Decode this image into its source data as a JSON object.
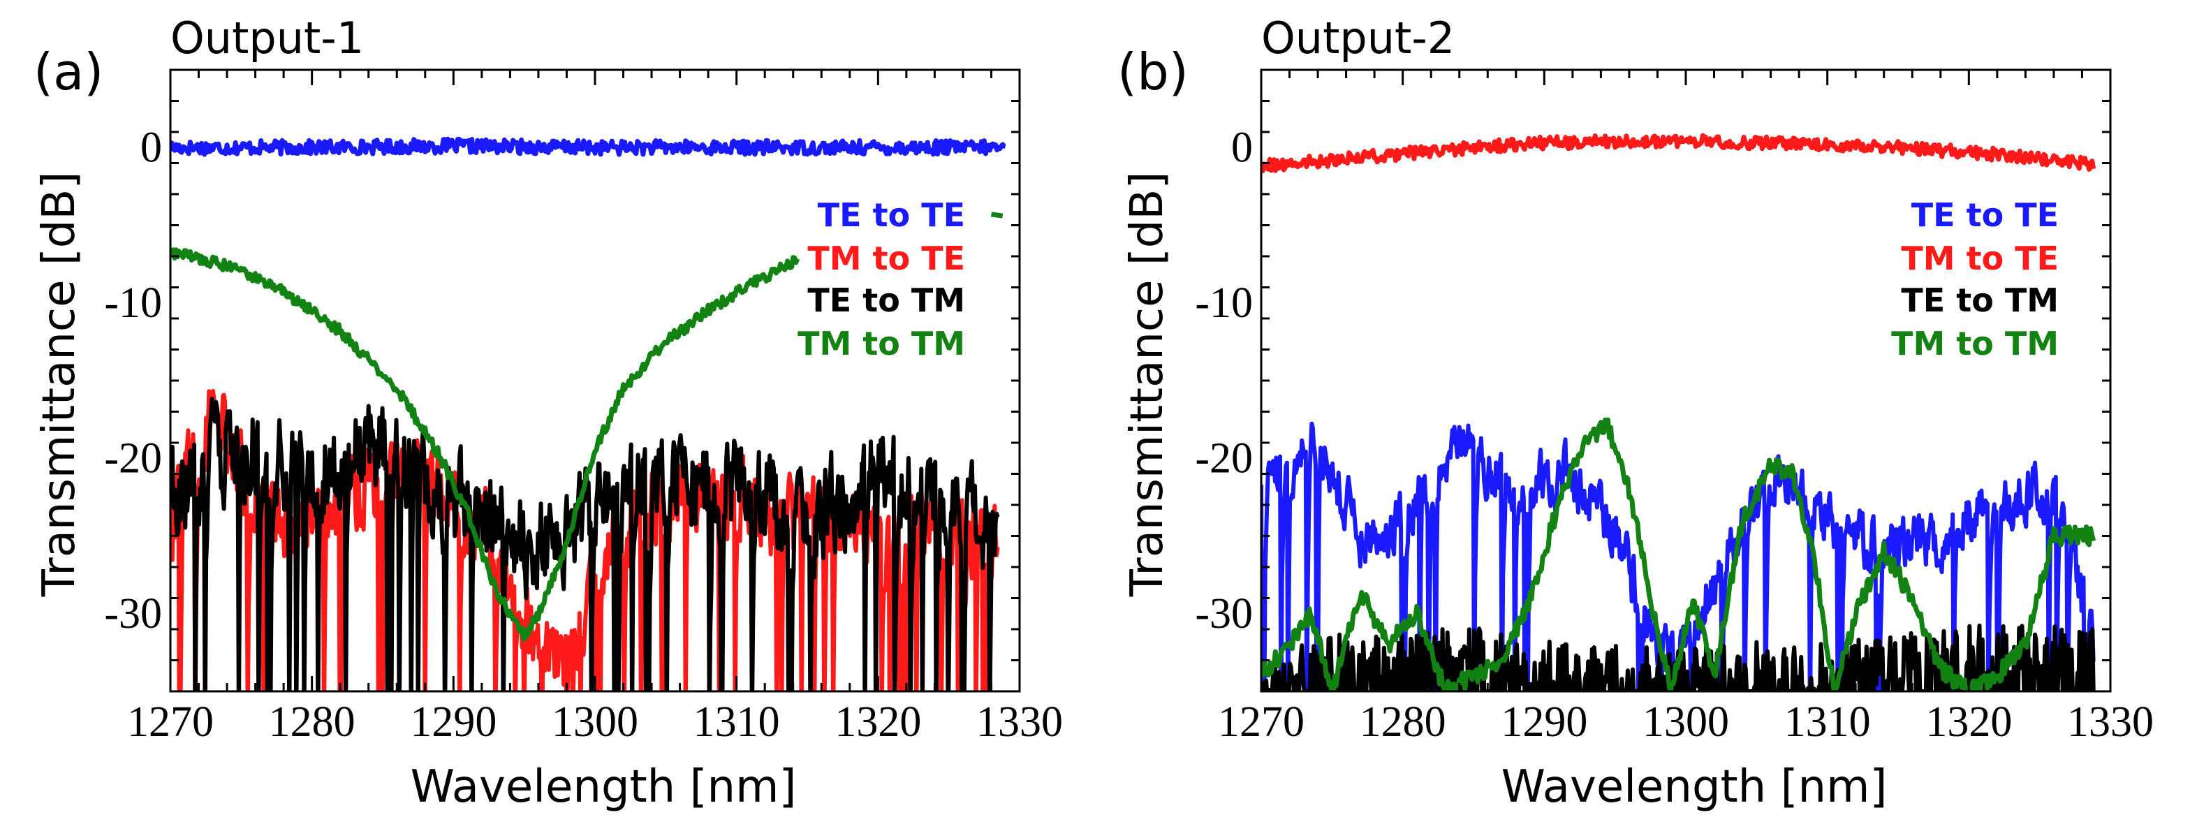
{
  "chart_data": [
    {
      "type": "line",
      "panel_label": "(a)",
      "title": "Output-1",
      "xlabel": "Wavelength [nm]",
      "ylabel": "Transmittance [dB]",
      "xlim": [
        1270,
        1330
      ],
      "ylim": [
        -35,
        5
      ],
      "xticks": [
        1270,
        1280,
        1290,
        1300,
        1310,
        1320,
        1330
      ],
      "yticks": [
        0,
        -10,
        -20,
        -30
      ],
      "grid": false,
      "legend_position": "right",
      "series": [
        {
          "name": "TE to TE",
          "color": "#1a1aff",
          "kind": "flat",
          "x": [
            1270,
            1280,
            1290,
            1300,
            1310,
            1320,
            1329
          ],
          "y": [
            0,
            0,
            0.1,
            0,
            0,
            0,
            0
          ],
          "noise": 0.45
        },
        {
          "name": "TM to TE",
          "color": "#ff1a1a",
          "kind": "noisy",
          "x": [
            1270,
            1273,
            1276,
            1280,
            1284,
            1288,
            1292,
            1294,
            1296,
            1298,
            1300,
            1304,
            1308,
            1312,
            1316,
            1320,
            1324,
            1328.5
          ],
          "y": [
            -24,
            -17,
            -23,
            -24,
            -22,
            -21,
            -24,
            -28,
            -32,
            -33,
            -27,
            -23,
            -22,
            -24,
            -24,
            -25,
            -24,
            -25
          ],
          "noise": 4,
          "floor": -35
        },
        {
          "name": "TE to TM",
          "color": "#000000",
          "kind": "noisy",
          "x": [
            1270,
            1275,
            1280,
            1285,
            1290,
            1295,
            1300,
            1305,
            1310,
            1315,
            1320,
            1325,
            1328.5
          ],
          "y": [
            -22,
            -19,
            -21,
            -19,
            -23,
            -26,
            -23,
            -21,
            -22,
            -24,
            -21,
            -23,
            -25
          ],
          "noise": 5,
          "floor": -35
        },
        {
          "name": "TM to TM",
          "color": "#128212",
          "kind": "smooth",
          "x": [
            1270,
            1274,
            1278,
            1282,
            1286,
            1289,
            1291,
            1293,
            1295,
            1296,
            1298,
            1300,
            1302,
            1305,
            1308,
            1311,
            1314.3
          ],
          "y": [
            -6.7,
            -7.6,
            -9.3,
            -11.8,
            -15.5,
            -19.8,
            -23.5,
            -28.5,
            -31.5,
            -30,
            -25.5,
            -19.5,
            -15.5,
            -12.5,
            -10.5,
            -8.8,
            -7.2
          ],
          "noise": 0.35,
          "extra_points": [
            [
              1328,
              -4.3
            ],
            [
              1328.8,
              -4.4
            ]
          ]
        }
      ]
    },
    {
      "type": "line",
      "panel_label": "(b)",
      "title": "Output-2",
      "xlabel": "Wavelength [nm]",
      "ylabel": "Transmittance [dB]",
      "xlim": [
        1270,
        1330
      ],
      "ylim": [
        -35,
        5
      ],
      "xticks": [
        1270,
        1280,
        1290,
        1300,
        1310,
        1320,
        1330
      ],
      "yticks": [
        0,
        -10,
        -20,
        -30
      ],
      "grid": false,
      "legend_position": "right",
      "series": [
        {
          "name": "TE to TE",
          "color": "#1a1aff",
          "kind": "noisy",
          "x": [
            1270,
            1274,
            1277,
            1280,
            1284,
            1288,
            1292,
            1295,
            1297,
            1299,
            1301,
            1304,
            1307,
            1310,
            1314,
            1318,
            1322,
            1326,
            1328.8
          ],
          "y": [
            -21,
            -19,
            -25,
            -24,
            -19,
            -22,
            -21,
            -25,
            -30,
            -33,
            -30,
            -24,
            -21,
            -24,
            -26,
            -25,
            -23,
            -22,
            -32
          ],
          "noise": 2.8,
          "floor": -35
        },
        {
          "name": "TM to TE",
          "color": "#ff1a1a",
          "kind": "flat",
          "x": [
            1270,
            1275,
            1280,
            1285,
            1290,
            1295,
            1300,
            1305,
            1310,
            1315,
            1320,
            1325,
            1328.8
          ],
          "y": [
            -1.2,
            -0.8,
            -0.4,
            0,
            0.3,
            0.4,
            0.4,
            0.3,
            0.2,
            0,
            -0.3,
            -0.7,
            -1.1
          ],
          "noise": 0.4
        },
        {
          "name": "TE to TM",
          "color": "#000000",
          "kind": "floor",
          "x": [
            1270,
            1275,
            1280,
            1285,
            1290,
            1295,
            1300,
            1305,
            1310,
            1315,
            1320,
            1325,
            1328.8
          ],
          "y": [
            -35,
            -33.5,
            -33.5,
            -33,
            -34,
            -34.2,
            -34.5,
            -34,
            -34.2,
            -33.5,
            -33,
            -33,
            -33
          ],
          "noise": 1.6,
          "floor": -35
        },
        {
          "name": "TM to TM",
          "color": "#128212",
          "kind": "smooth",
          "x": [
            1270,
            1272,
            1273.5,
            1275,
            1277,
            1279,
            1281,
            1283,
            1285,
            1287,
            1289,
            1291,
            1293,
            1294.5,
            1296,
            1297.5,
            1299,
            1300.5,
            1302,
            1304,
            1306,
            1307.5,
            1309,
            1310.5,
            1312,
            1314,
            1316,
            1318,
            1320,
            1322,
            1324,
            1326,
            1328.8
          ],
          "y": [
            -34,
            -32,
            -30,
            -35,
            -28.5,
            -32,
            -30,
            -35,
            -34,
            -33,
            -29,
            -23,
            -18.5,
            -18,
            -22,
            -29,
            -35,
            -29,
            -34,
            -24,
            -20.5,
            -21,
            -26,
            -35,
            -30,
            -26,
            -29,
            -33.5,
            -35,
            -34,
            -32,
            -25,
            -25
          ],
          "noise": 0.6,
          "floor": -35
        }
      ]
    }
  ]
}
